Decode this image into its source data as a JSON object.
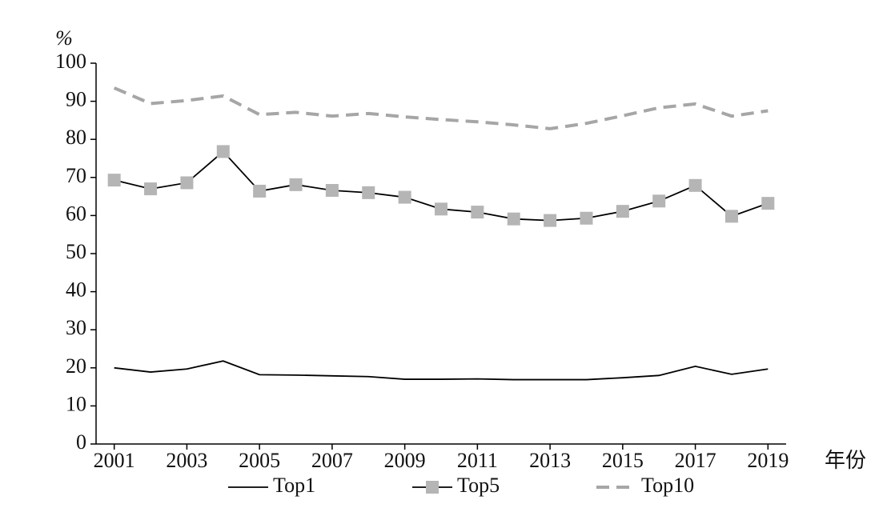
{
  "chart_data": {
    "type": "line",
    "y_label": "%",
    "x_label": "年份",
    "x": [
      2001,
      2002,
      2003,
      2004,
      2005,
      2006,
      2007,
      2008,
      2009,
      2010,
      2011,
      2012,
      2013,
      2014,
      2015,
      2016,
      2017,
      2018,
      2019
    ],
    "series": [
      {
        "name": "Top1",
        "color": "#000000",
        "values": [
          20,
          18.9,
          19.7,
          21.8,
          18.2,
          18.1,
          17.9,
          17.7,
          17.0,
          17.0,
          17.1,
          16.9,
          16.9,
          16.9,
          17.4,
          18.0,
          20.4,
          18.3,
          19.7
        ]
      },
      {
        "name": "Top5",
        "color": "#000000",
        "marker_color": "#b5b5b5",
        "values": [
          69.3,
          67.0,
          68.6,
          76.8,
          66.4,
          68.1,
          66.6,
          66.0,
          64.8,
          61.7,
          60.9,
          59.1,
          58.7,
          59.3,
          61.1,
          63.8,
          67.9,
          59.8,
          63.2
        ]
      },
      {
        "name": "Top10",
        "color": "#a6a6a6",
        "dashed": true,
        "values": [
          93.5,
          89.4,
          90.2,
          91.4,
          86.5,
          87.1,
          86.1,
          86.8,
          85.9,
          85.2,
          84.6,
          83.8,
          82.8,
          84.2,
          86.2,
          88.3,
          89.3,
          86.1,
          87.5
        ]
      }
    ],
    "xlim": [
      2000.5,
      2019.5
    ],
    "xticks": [
      2001,
      2003,
      2005,
      2007,
      2009,
      2011,
      2013,
      2015,
      2017,
      2019
    ],
    "ylim": [
      0,
      100
    ],
    "yticks": [
      0,
      10,
      20,
      30,
      40,
      50,
      60,
      70,
      80,
      90,
      100
    ],
    "legend": "bottom"
  }
}
